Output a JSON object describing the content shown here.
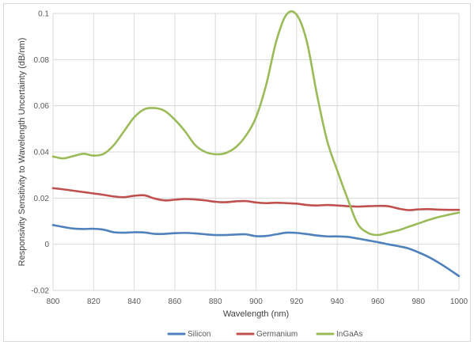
{
  "chart_data": {
    "type": "line",
    "title": "",
    "xlabel": "Wavelength (nm)",
    "ylabel": "Responsivity Sensitivity to Wavelength Uncertainty (dB/nm)",
    "xlim": [
      800,
      1000
    ],
    "ylim": [
      -0.02,
      0.1
    ],
    "x_ticks": [
      "800",
      "820",
      "840",
      "860",
      "880",
      "900",
      "920",
      "940",
      "960",
      "980",
      "1000"
    ],
    "y_ticks": [
      "-0.02",
      "0",
      "0.02",
      "0.04",
      "0.06",
      "0.08",
      "0.1"
    ],
    "grid": true,
    "legend_position": "bottom",
    "series": [
      {
        "name": "Silicon",
        "color": "#4f81bd",
        "x": [
          800,
          805,
          810,
          815,
          820,
          825,
          830,
          835,
          840,
          845,
          850,
          855,
          860,
          865,
          870,
          875,
          880,
          885,
          890,
          895,
          900,
          905,
          910,
          915,
          920,
          925,
          930,
          935,
          940,
          945,
          950,
          955,
          960,
          965,
          970,
          975,
          980,
          985,
          990,
          995,
          1000
        ],
        "values": [
          0.0083,
          0.0075,
          0.0068,
          0.0066,
          0.0067,
          0.0063,
          0.0052,
          0.005,
          0.0052,
          0.0051,
          0.0045,
          0.0045,
          0.0048,
          0.0049,
          0.0047,
          0.0043,
          0.004,
          0.004,
          0.0042,
          0.0043,
          0.0035,
          0.0036,
          0.0043,
          0.005,
          0.0049,
          0.0044,
          0.0038,
          0.0034,
          0.0034,
          0.0032,
          0.0025,
          0.0017,
          0.0009,
          0.0,
          -0.0008,
          -0.0018,
          -0.0035,
          -0.0055,
          -0.008,
          -0.0108,
          -0.0138
        ]
      },
      {
        "name": "Germanium",
        "color": "#c0504d",
        "x": [
          800,
          805,
          810,
          815,
          820,
          825,
          830,
          835,
          840,
          845,
          850,
          855,
          860,
          865,
          870,
          875,
          880,
          885,
          890,
          895,
          900,
          905,
          910,
          915,
          920,
          925,
          930,
          935,
          940,
          945,
          950,
          955,
          960,
          965,
          970,
          975,
          980,
          985,
          990,
          995,
          1000
        ],
        "values": [
          0.0243,
          0.0238,
          0.0232,
          0.0226,
          0.022,
          0.0214,
          0.0207,
          0.0204,
          0.021,
          0.0212,
          0.0198,
          0.019,
          0.0193,
          0.0196,
          0.0194,
          0.019,
          0.0184,
          0.0182,
          0.0186,
          0.0187,
          0.0181,
          0.0178,
          0.018,
          0.0178,
          0.0176,
          0.017,
          0.0168,
          0.017,
          0.0168,
          0.0165,
          0.0163,
          0.0165,
          0.0166,
          0.0165,
          0.0155,
          0.0148,
          0.0151,
          0.0152,
          0.015,
          0.0149,
          0.0149
        ]
      },
      {
        "name": "InGaAs",
        "color": "#9bbb59",
        "x": [
          800,
          805,
          810,
          815,
          820,
          825,
          830,
          835,
          840,
          845,
          850,
          855,
          860,
          865,
          870,
          875,
          880,
          885,
          890,
          895,
          900,
          905,
          910,
          915,
          920,
          925,
          930,
          935,
          940,
          945,
          950,
          955,
          960,
          965,
          970,
          975,
          980,
          985,
          990,
          995,
          1000
        ],
        "values": [
          0.038,
          0.0372,
          0.0382,
          0.0392,
          0.0384,
          0.0392,
          0.043,
          0.049,
          0.055,
          0.0585,
          0.059,
          0.0578,
          0.054,
          0.049,
          0.043,
          0.04,
          0.039,
          0.0395,
          0.042,
          0.047,
          0.055,
          0.069,
          0.088,
          0.0995,
          0.0995,
          0.088,
          0.065,
          0.045,
          0.032,
          0.02,
          0.009,
          0.005,
          0.004,
          0.005,
          0.006,
          0.0075,
          0.009,
          0.0105,
          0.0118,
          0.0128,
          0.0137
        ]
      }
    ]
  }
}
